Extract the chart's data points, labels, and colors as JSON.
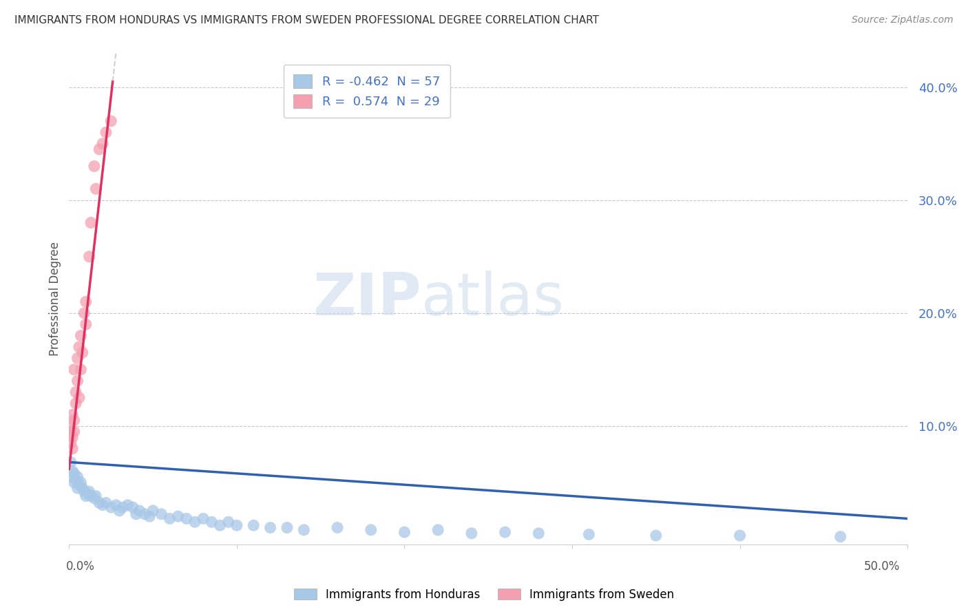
{
  "title": "IMMIGRANTS FROM HONDURAS VS IMMIGRANTS FROM SWEDEN PROFESSIONAL DEGREE CORRELATION CHART",
  "source": "Source: ZipAtlas.com",
  "ylabel": "Professional Degree",
  "y_ticks": [
    0.0,
    0.1,
    0.2,
    0.3,
    0.4
  ],
  "y_tick_labels": [
    "",
    "10.0%",
    "20.0%",
    "30.0%",
    "40.0%"
  ],
  "x_lim": [
    0.0,
    0.5
  ],
  "y_lim": [
    -0.005,
    0.43
  ],
  "legend1_label": "R = -0.462  N = 57",
  "legend2_label": "R =  0.574  N = 29",
  "blue_color": "#a8c8e8",
  "pink_color": "#f4a0b0",
  "blue_line_color": "#3060b0",
  "pink_line_color": "#e03060",
  "watermark_zip": "ZIP",
  "watermark_atlas": "atlas",
  "honduras_x": [
    0.001,
    0.002,
    0.002,
    0.003,
    0.003,
    0.004,
    0.005,
    0.005,
    0.006,
    0.007,
    0.008,
    0.009,
    0.01,
    0.011,
    0.012,
    0.013,
    0.015,
    0.016,
    0.018,
    0.02,
    0.022,
    0.025,
    0.028,
    0.03,
    0.032,
    0.035,
    0.038,
    0.04,
    0.042,
    0.045,
    0.048,
    0.05,
    0.055,
    0.06,
    0.065,
    0.07,
    0.075,
    0.08,
    0.085,
    0.09,
    0.095,
    0.1,
    0.11,
    0.12,
    0.13,
    0.14,
    0.16,
    0.18,
    0.2,
    0.22,
    0.24,
    0.26,
    0.28,
    0.31,
    0.35,
    0.4,
    0.46
  ],
  "honduras_y": [
    0.068,
    0.055,
    0.06,
    0.05,
    0.058,
    0.052,
    0.055,
    0.045,
    0.048,
    0.05,
    0.045,
    0.042,
    0.038,
    0.04,
    0.042,
    0.038,
    0.036,
    0.038,
    0.032,
    0.03,
    0.032,
    0.028,
    0.03,
    0.025,
    0.028,
    0.03,
    0.028,
    0.022,
    0.025,
    0.022,
    0.02,
    0.025,
    0.022,
    0.018,
    0.02,
    0.018,
    0.015,
    0.018,
    0.015,
    0.012,
    0.015,
    0.012,
    0.012,
    0.01,
    0.01,
    0.008,
    0.01,
    0.008,
    0.006,
    0.008,
    0.005,
    0.006,
    0.005,
    0.004,
    0.003,
    0.003,
    0.002
  ],
  "sweden_x": [
    0.001,
    0.001,
    0.001,
    0.002,
    0.002,
    0.002,
    0.003,
    0.003,
    0.003,
    0.004,
    0.004,
    0.005,
    0.005,
    0.006,
    0.006,
    0.007,
    0.007,
    0.008,
    0.009,
    0.01,
    0.01,
    0.012,
    0.013,
    0.015,
    0.016,
    0.018,
    0.02,
    0.022,
    0.025
  ],
  "sweden_y": [
    0.095,
    0.085,
    0.1,
    0.09,
    0.08,
    0.11,
    0.095,
    0.105,
    0.15,
    0.13,
    0.12,
    0.14,
    0.16,
    0.17,
    0.125,
    0.18,
    0.15,
    0.165,
    0.2,
    0.21,
    0.19,
    0.25,
    0.28,
    0.33,
    0.31,
    0.345,
    0.35,
    0.36,
    0.37
  ],
  "blue_trend_x": [
    0.0,
    0.5
  ],
  "blue_trend_y": [
    0.068,
    0.018
  ],
  "pink_trend_x": [
    0.0,
    0.026
  ],
  "pink_trend_y": [
    0.062,
    0.405
  ]
}
